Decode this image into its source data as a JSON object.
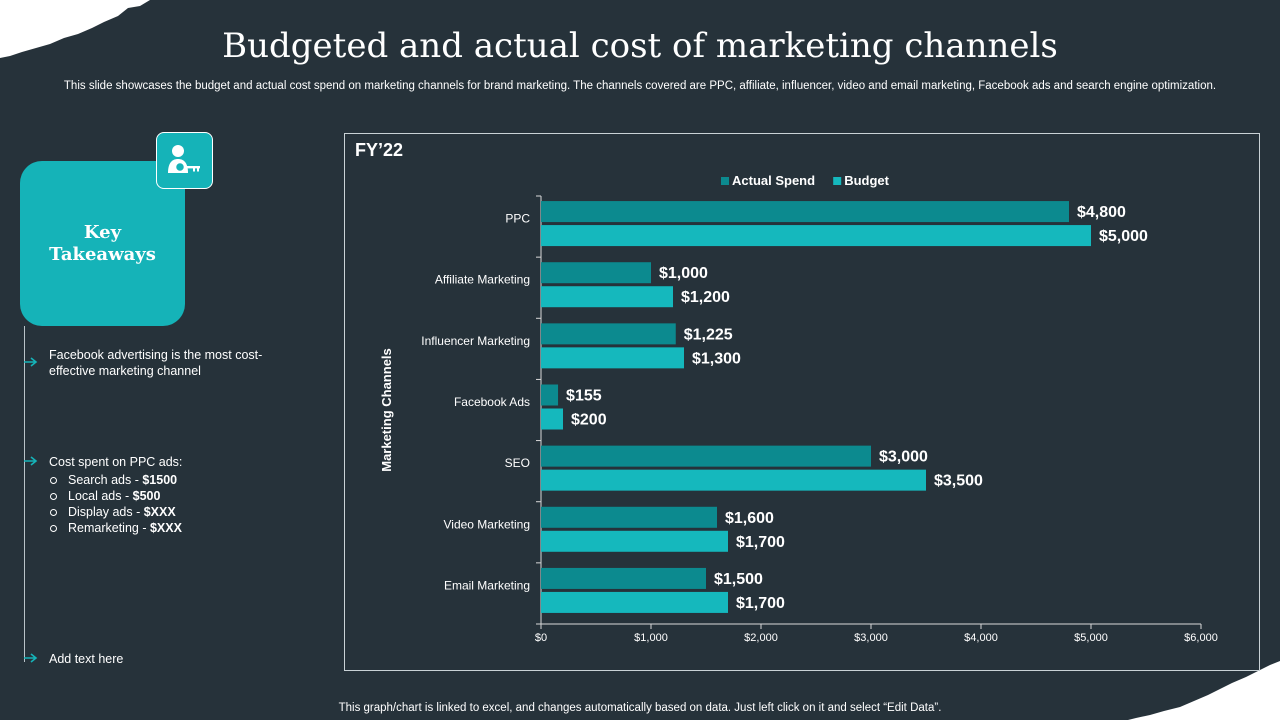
{
  "header": {
    "title": "Budgeted and actual cost of marketing channels",
    "subtitle": "This slide showcases the budget and actual cost spend on marketing channels for brand marketing. The channels covered are PPC, affiliate, influencer, video and email marketing, Facebook ads and search engine optimization."
  },
  "takeaways": {
    "title": "Key Takeaways",
    "badge_icon": "user-key-icon",
    "points": [
      {
        "text": "Facebook advertising  is the most cost-effective  marketing channel"
      },
      {
        "text": "Cost spent on PPC ads:",
        "subitems": [
          {
            "label": "Search ads - ",
            "value": "$1500"
          },
          {
            "label": "Local ads - ",
            "value": "$500"
          },
          {
            "label": "Display ads - ",
            "value": "$XXX"
          },
          {
            "label": "Remarketing - ",
            "value": "$XXX"
          }
        ]
      },
      {
        "text": "Add text here"
      }
    ]
  },
  "colors": {
    "background": "#26323a",
    "actual": "#0c8a8f",
    "budget": "#15b8bd",
    "accent": "#15b3b8"
  },
  "chart_data": {
    "type": "bar",
    "orientation": "horizontal",
    "title": "FY’22",
    "xlabel": "",
    "ylabel": "Marketing Channels",
    "categories": [
      "PPC",
      "Affiliate Marketing",
      "Influencer Marketing",
      "Facebook Ads",
      "SEO",
      "Video Marketing",
      "Email Marketing"
    ],
    "series": [
      {
        "name": "Actual Spend",
        "values": [
          4800,
          1000,
          1225,
          155,
          3000,
          1600,
          1500
        ]
      },
      {
        "name": "Budget",
        "values": [
          5000,
          1200,
          1300,
          200,
          3500,
          1700,
          1700
        ]
      }
    ],
    "data_labels": {
      "Actual Spend": [
        "$4,800",
        "$1,000",
        "$1,225",
        "$155",
        "$3,000",
        "$1,600",
        "$1,500"
      ],
      "Budget": [
        "$5,000",
        "$1,200",
        "$1,300",
        "$200",
        "$3,500",
        "$1,700",
        "$1,700"
      ]
    },
    "xlim": [
      0,
      6000
    ],
    "xticks": [
      0,
      1000,
      2000,
      3000,
      4000,
      5000,
      6000
    ],
    "xtick_labels": [
      "$0",
      "$1,000",
      "$2,000",
      "$3,000",
      "$4,000",
      "$5,000",
      "$6,000"
    ],
    "legend_position": "top-center",
    "grid": false
  },
  "footer": {
    "note": "This graph/chart is linked to excel,  and changes automatically based on data. Just left click on it and select “Edit Data”."
  }
}
